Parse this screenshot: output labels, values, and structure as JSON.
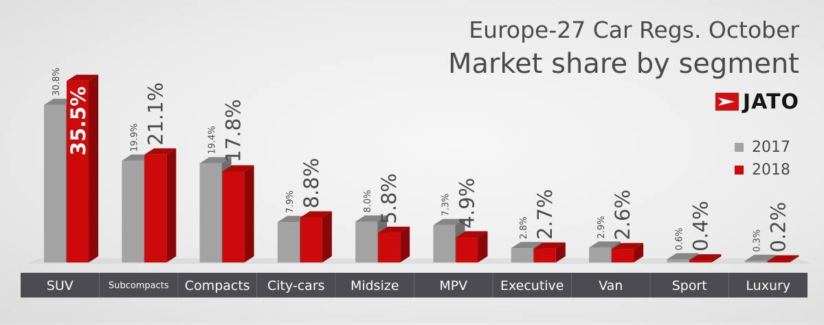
{
  "title": "Europe-27 Car Regs. October",
  "subtitle": "Market share by segment",
  "brand": "JATO",
  "colors": {
    "s2017": "#a3a3a3",
    "s2018": "#cc0a0a",
    "axis_band": "#4b4b50",
    "text": "#4a4a4a"
  },
  "chart_data": {
    "type": "bar",
    "title": "Europe-27 Car Regs. October",
    "subtitle": "Market share by segment",
    "categories": [
      "SUV",
      "Subcompacts",
      "Compacts",
      "City-cars",
      "Midsize",
      "MPV",
      "Executive",
      "Van",
      "Sport",
      "Luxury"
    ],
    "series": [
      {
        "name": "2017",
        "values": [
          30.8,
          19.9,
          19.4,
          7.9,
          8.0,
          7.3,
          2.8,
          2.9,
          0.6,
          0.3
        ],
        "labels": [
          "30.8%",
          "19.9%",
          "19.4%",
          "7.9%",
          "8.0%",
          "7.3%",
          "2.8%",
          "2.9%",
          "0.6%",
          "0.3%"
        ]
      },
      {
        "name": "2018",
        "values": [
          35.5,
          21.1,
          17.8,
          8.8,
          5.8,
          4.9,
          2.7,
          2.6,
          0.4,
          0.2
        ],
        "labels": [
          "35.5%",
          "21.1%",
          "17.8%",
          "8.8%",
          "5.8%",
          "4.9%",
          "2.7%",
          "2.6%",
          "0.4%",
          "0.2%"
        ]
      }
    ],
    "ylim": [
      0,
      36
    ],
    "xlabel": "",
    "ylabel": "",
    "grid": false,
    "legend": "right",
    "data_labels": "rotated"
  }
}
